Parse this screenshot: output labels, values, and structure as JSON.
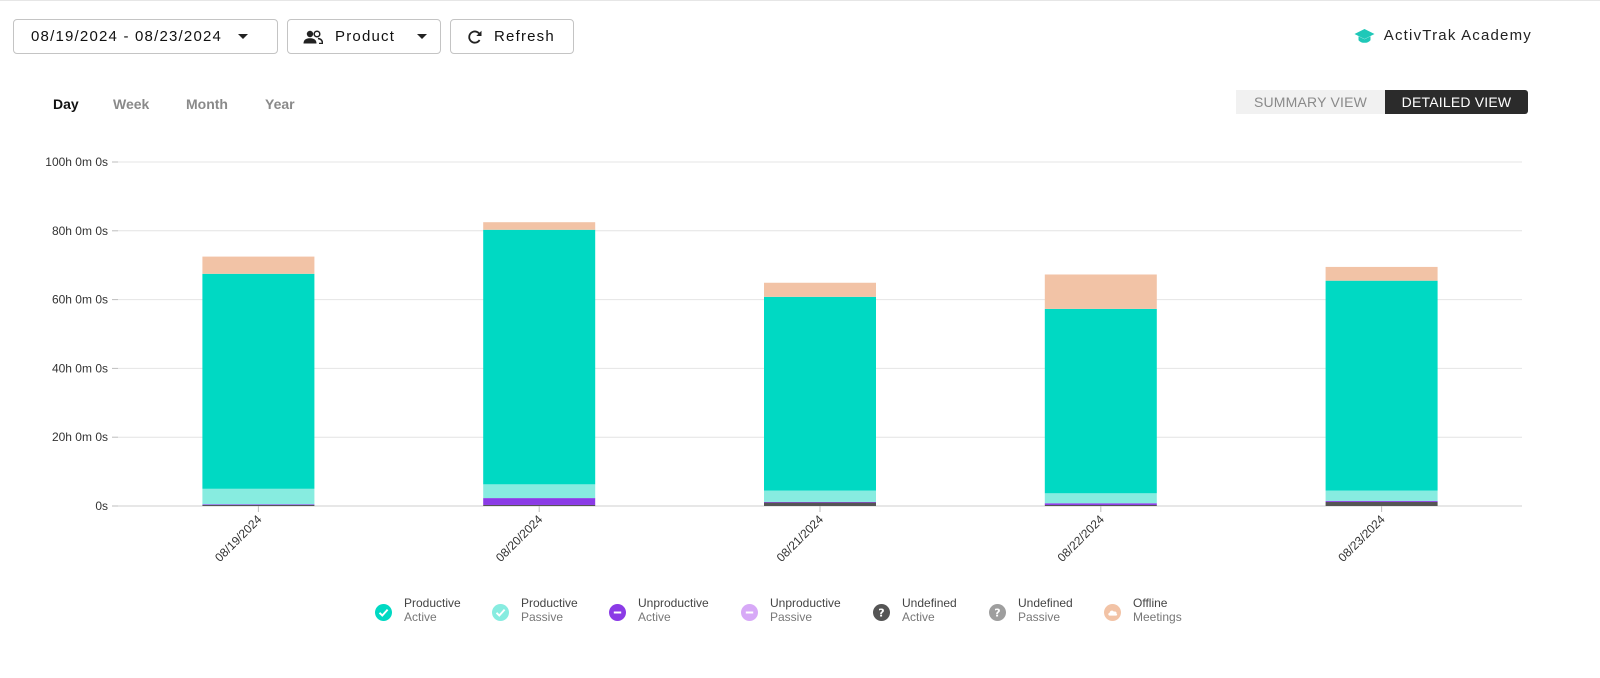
{
  "toolbar": {
    "date_range": "08/19/2024 - 08/23/2024",
    "filter_label": "Product",
    "refresh_label": "Refresh"
  },
  "academy": {
    "label": "ActivTrak Academy",
    "icon": "graduation-cap-icon",
    "color": "#1fc8b8"
  },
  "periods": [
    "Day",
    "Week",
    "Month",
    "Year"
  ],
  "active_period": "Day",
  "view_toggle": {
    "summary": "SUMMARY VIEW",
    "detailed": "DETAILED VIEW",
    "active": "DETAILED VIEW"
  },
  "chart_data": {
    "type": "bar",
    "stacked": true,
    "categories": [
      "08/19/2024",
      "08/20/2024",
      "08/21/2024",
      "08/22/2024",
      "08/23/2024"
    ],
    "y_tick_labels": [
      "0s",
      "20h 0m 0s",
      "40h 0m 0s",
      "60h 0m 0s",
      "80h 0m 0s",
      "100h 0m 0s"
    ],
    "ylim": [
      0,
      100
    ],
    "grid": true,
    "legend_placement": "bottom-center",
    "series": [
      {
        "name": "Undefined Active",
        "color": "#555555",
        "values": [
          0.3,
          0.3,
          1.0,
          0.3,
          1.2
        ]
      },
      {
        "name": "Unproductive Active",
        "color": "#8b3be6",
        "values": [
          0.2,
          2.0,
          0.2,
          0.5,
          0.3
        ]
      },
      {
        "name": "Productive Passive",
        "color": "#87ece0",
        "values": [
          4.5,
          4.0,
          3.3,
          2.9,
          3.0
        ]
      },
      {
        "name": "Productive Active",
        "color": "#00d9c3",
        "values": [
          62.5,
          74.0,
          56.3,
          53.6,
          61.0
        ]
      },
      {
        "name": "Offline Meetings",
        "color": "#f2c3a6",
        "values": [
          5.0,
          2.2,
          4.1,
          10.0,
          4.0
        ]
      }
    ]
  },
  "legend": [
    {
      "line1": "Productive",
      "line2": "Active",
      "color": "#00d9c3",
      "icon": "check-icon"
    },
    {
      "line1": "Productive",
      "line2": "Passive",
      "color": "#87ece0",
      "icon": "check-icon"
    },
    {
      "line1": "Unproductive",
      "line2": "Active",
      "color": "#8b3be6",
      "icon": "minus-icon"
    },
    {
      "line1": "Unproductive",
      "line2": "Passive",
      "color": "#d7a9f7",
      "icon": "minus-icon"
    },
    {
      "line1": "Undefined",
      "line2": "Active",
      "color": "#555555",
      "icon": "question-icon"
    },
    {
      "line1": "Undefined",
      "line2": "Passive",
      "color": "#9e9e9e",
      "icon": "question-icon"
    },
    {
      "line1": "Offline",
      "line2": "Meetings",
      "color": "#f2c3a6",
      "icon": "cloud-icon"
    }
  ]
}
